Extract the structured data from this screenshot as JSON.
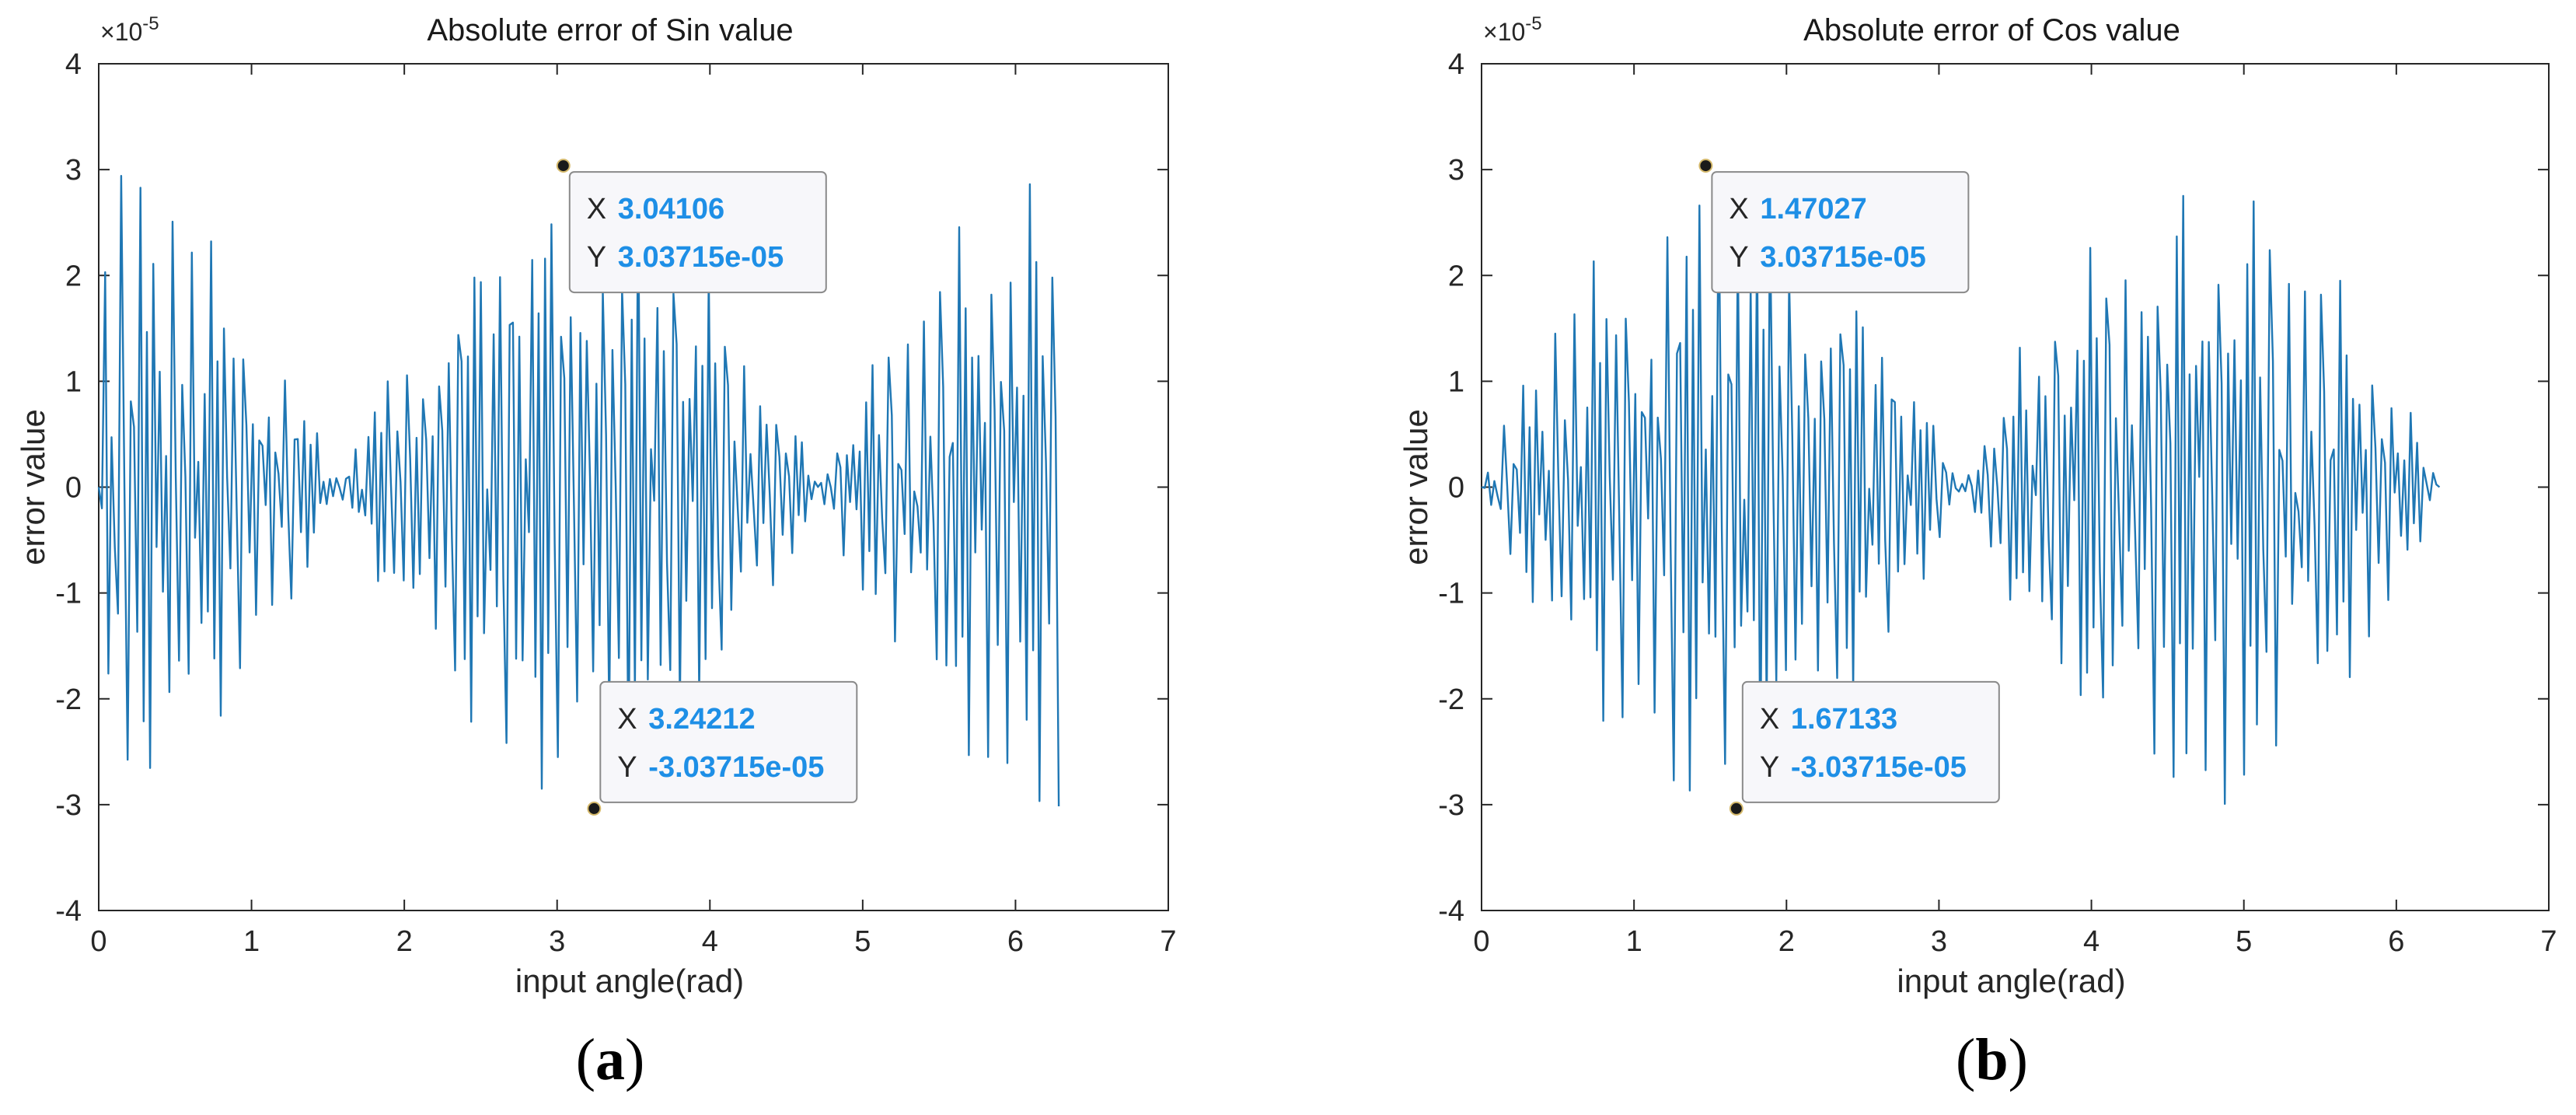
{
  "figure": {
    "panels": [
      {
        "caption_letter": "a",
        "chart_data": {
          "type": "line",
          "title": "Absolute error of Sin value",
          "xlabel": "input angle(rad)",
          "ylabel": "error value",
          "xlim": [
            0,
            7
          ],
          "ylim": [
            -4,
            4
          ],
          "y_multiplier": "×10",
          "y_multiplier_exponent": "-5",
          "xticks": [
            "0",
            "1",
            "2",
            "3",
            "4",
            "5",
            "6",
            "7"
          ],
          "yticks": [
            "-4",
            "-3",
            "-2",
            "-1",
            "0",
            "1",
            "2",
            "3",
            "4"
          ],
          "series_color": "#1f77b4",
          "generator": "sin",
          "x_start": 0,
          "x_end": 6.2832,
          "n_points": 300,
          "amplitude_scale": 3.03715,
          "datatips": [
            {
              "x_label": "X",
              "y_label": "Y",
              "x_value": "3.04106",
              "y_value": "3.03715e-05",
              "x": 3.04106,
              "y": 3.03715,
              "anchor": "below-right"
            },
            {
              "x_label": "X",
              "y_label": "Y",
              "x_value": "3.24212",
              "y_value": "-3.03715e-05",
              "x": 3.24212,
              "y": -3.03715,
              "anchor": "above-right"
            }
          ]
        }
      },
      {
        "caption_letter": "b",
        "chart_data": {
          "type": "line",
          "title": "Absolute error of Cos value",
          "xlabel": "input angle(rad)",
          "ylabel": "error value",
          "xlim": [
            0,
            7
          ],
          "ylim": [
            -4,
            4
          ],
          "y_multiplier": "×10",
          "y_multiplier_exponent": "-5",
          "xticks": [
            "0",
            "1",
            "2",
            "3",
            "4",
            "5",
            "6",
            "7"
          ],
          "yticks": [
            "-4",
            "-3",
            "-2",
            "-1",
            "0",
            "1",
            "2",
            "3",
            "4"
          ],
          "series_color": "#1f77b4",
          "generator": "cos",
          "x_start": 0,
          "x_end": 6.2832,
          "n_points": 300,
          "amplitude_scale": 3.03715,
          "datatips": [
            {
              "x_label": "X",
              "y_label": "Y",
              "x_value": "1.47027",
              "y_value": "3.03715e-05",
              "x": 1.47027,
              "y": 3.03715,
              "anchor": "below-right"
            },
            {
              "x_label": "X",
              "y_label": "Y",
              "x_value": "1.67133",
              "y_value": "-3.03715e-05",
              "x": 1.67133,
              "y": -3.03715,
              "anchor": "above-right"
            }
          ]
        }
      }
    ]
  }
}
